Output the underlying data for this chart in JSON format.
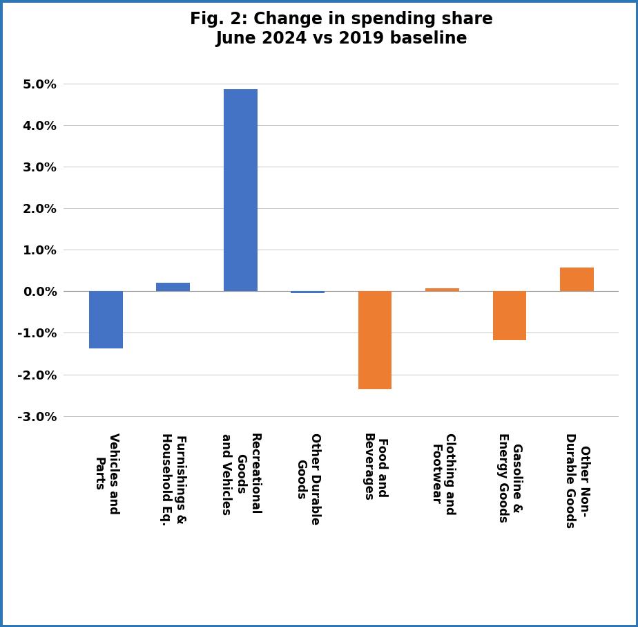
{
  "title": "Fig. 2: Change in spending share\nJune 2024 vs 2019 baseline",
  "categories": [
    "Vehicles and\nParts",
    "Furnishings &\nHousehold Eq.",
    "Recreational\nGoods\nand Vehicles",
    "Other Durable\nGoods",
    "Food and\nBeverages",
    "Clothing and\nFootwear",
    "Gasoline &\nEnergy Goods",
    "Other Non-\nDurable Goods"
  ],
  "values": [
    -1.38,
    0.21,
    4.87,
    -0.04,
    -2.35,
    0.07,
    -1.18,
    0.57
  ],
  "colors": [
    "#4472C4",
    "#4472C4",
    "#4472C4",
    "#4472C4",
    "#ED7D31",
    "#ED7D31",
    "#ED7D31",
    "#ED7D31"
  ],
  "ylim": [
    -3.25,
    5.5
  ],
  "yticks": [
    -3.0,
    -2.0,
    -1.0,
    0.0,
    1.0,
    2.0,
    3.0,
    4.0,
    5.0
  ],
  "background_color": "#FFFFFF",
  "border_color": "#2E75B6",
  "title_fontsize": 17,
  "tick_fontsize": 13,
  "xlabel_fontsize": 12,
  "bar_width": 0.5
}
